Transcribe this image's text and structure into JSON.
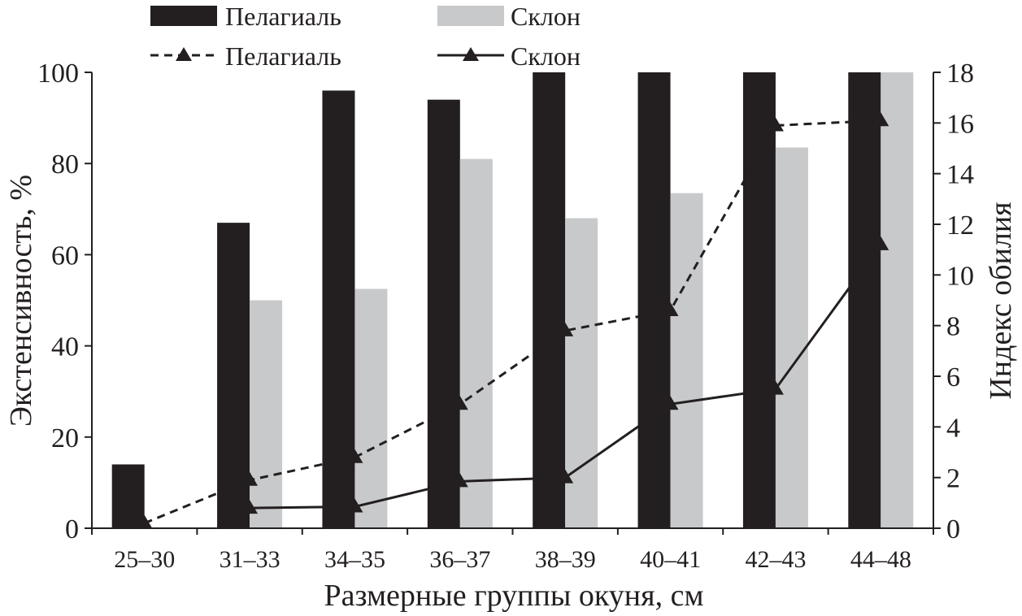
{
  "chart_data": {
    "type": "bar",
    "xlabel": "Размерные группы окуня, см",
    "ylabel": "Экстенсивность, %",
    "y2label": "Индекс обилия",
    "ylim": [
      0,
      100
    ],
    "y2lim": [
      0,
      18
    ],
    "yticks": [
      "0",
      "20",
      "40",
      "60",
      "80",
      "100"
    ],
    "y2ticks": [
      "0",
      "2",
      "4",
      "6",
      "8",
      "10",
      "12",
      "14",
      "16",
      "18"
    ],
    "categories": [
      "25–30",
      "31–33",
      "34–35",
      "36–37",
      "38–39",
      "40–41",
      "42–43",
      "44–48"
    ],
    "bar_series": [
      {
        "name": "Пелагиаль",
        "color": "#231f20",
        "values": [
          14,
          67,
          96,
          94,
          100,
          100,
          100,
          100
        ]
      },
      {
        "name": "Склон",
        "color": "#c8c9cb",
        "values": [
          null,
          50,
          52.5,
          81,
          68,
          73.5,
          83.5,
          100
        ]
      }
    ],
    "line_series": [
      {
        "name": "Пелагиаль",
        "axis": "right",
        "style": "dashed",
        "marker": "triangle",
        "values": [
          0.2,
          1.9,
          2.8,
          4.9,
          7.8,
          8.6,
          15.9,
          16.1
        ]
      },
      {
        "name": "Склон",
        "axis": "right",
        "style": "solid",
        "marker": "triangle",
        "values": [
          null,
          0.8,
          0.85,
          1.85,
          2.0,
          4.9,
          5.5,
          11.2
        ]
      }
    ],
    "grid": false,
    "legend_position": "top"
  }
}
